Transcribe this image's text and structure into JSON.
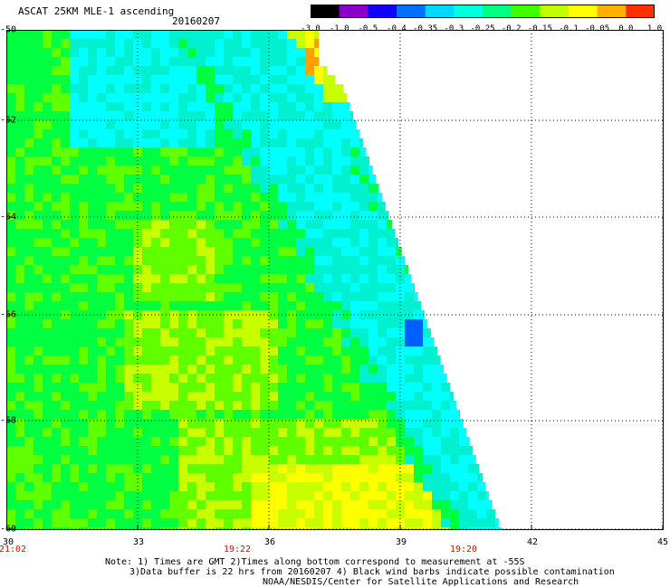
{
  "header": {
    "title": "ASCAT 25KM MLE-1 ascending",
    "date": "20160207"
  },
  "colorbar": {
    "labels": [
      "-3.0",
      "-1.0",
      "-0.5",
      "-0.4",
      "-0.35",
      "-0.3",
      "-0.25",
      "-0.2",
      "-0.15",
      "-0.1",
      "-0.05",
      "0.0",
      "1.0"
    ],
    "colors": [
      "#000000",
      "#8a00c8",
      "#1000ff",
      "#0070ff",
      "#00d8ff",
      "#00ffe0",
      "#00ff80",
      "#40ff00",
      "#c0ff00",
      "#ffff00",
      "#ffb000",
      "#ff3000"
    ]
  },
  "axes": {
    "y_ticks": [
      "-50",
      "-52",
      "-54",
      "-56",
      "-58",
      "-60"
    ],
    "x_ticks": [
      "30",
      "33",
      "36",
      "39",
      "42",
      "45"
    ],
    "time_labels": [
      "21:02",
      "19:22",
      "19:20"
    ]
  },
  "notes": {
    "line1": "Note: 1) Times are GMT 2)Times along bottom correspond to measurement at -55S",
    "line2": "3)Data buffer is 22 hrs from 20160207 4) Black wind barbs indicate possible contamination",
    "line3": "NOAA/NESDIS/Center for Satellite Applications and Research"
  },
  "map": {
    "lon_range": [
      30,
      45
    ],
    "lat_range": [
      -50,
      -60
    ],
    "palette": {
      "cyan": "#00ffff",
      "aqua": "#00f0d0",
      "green": "#00ff40",
      "lime": "#60ff00",
      "yellowgreen": "#c8ff00",
      "yellow": "#ffff00",
      "orange": "#ffa000",
      "blue": "#0060ff"
    }
  }
}
